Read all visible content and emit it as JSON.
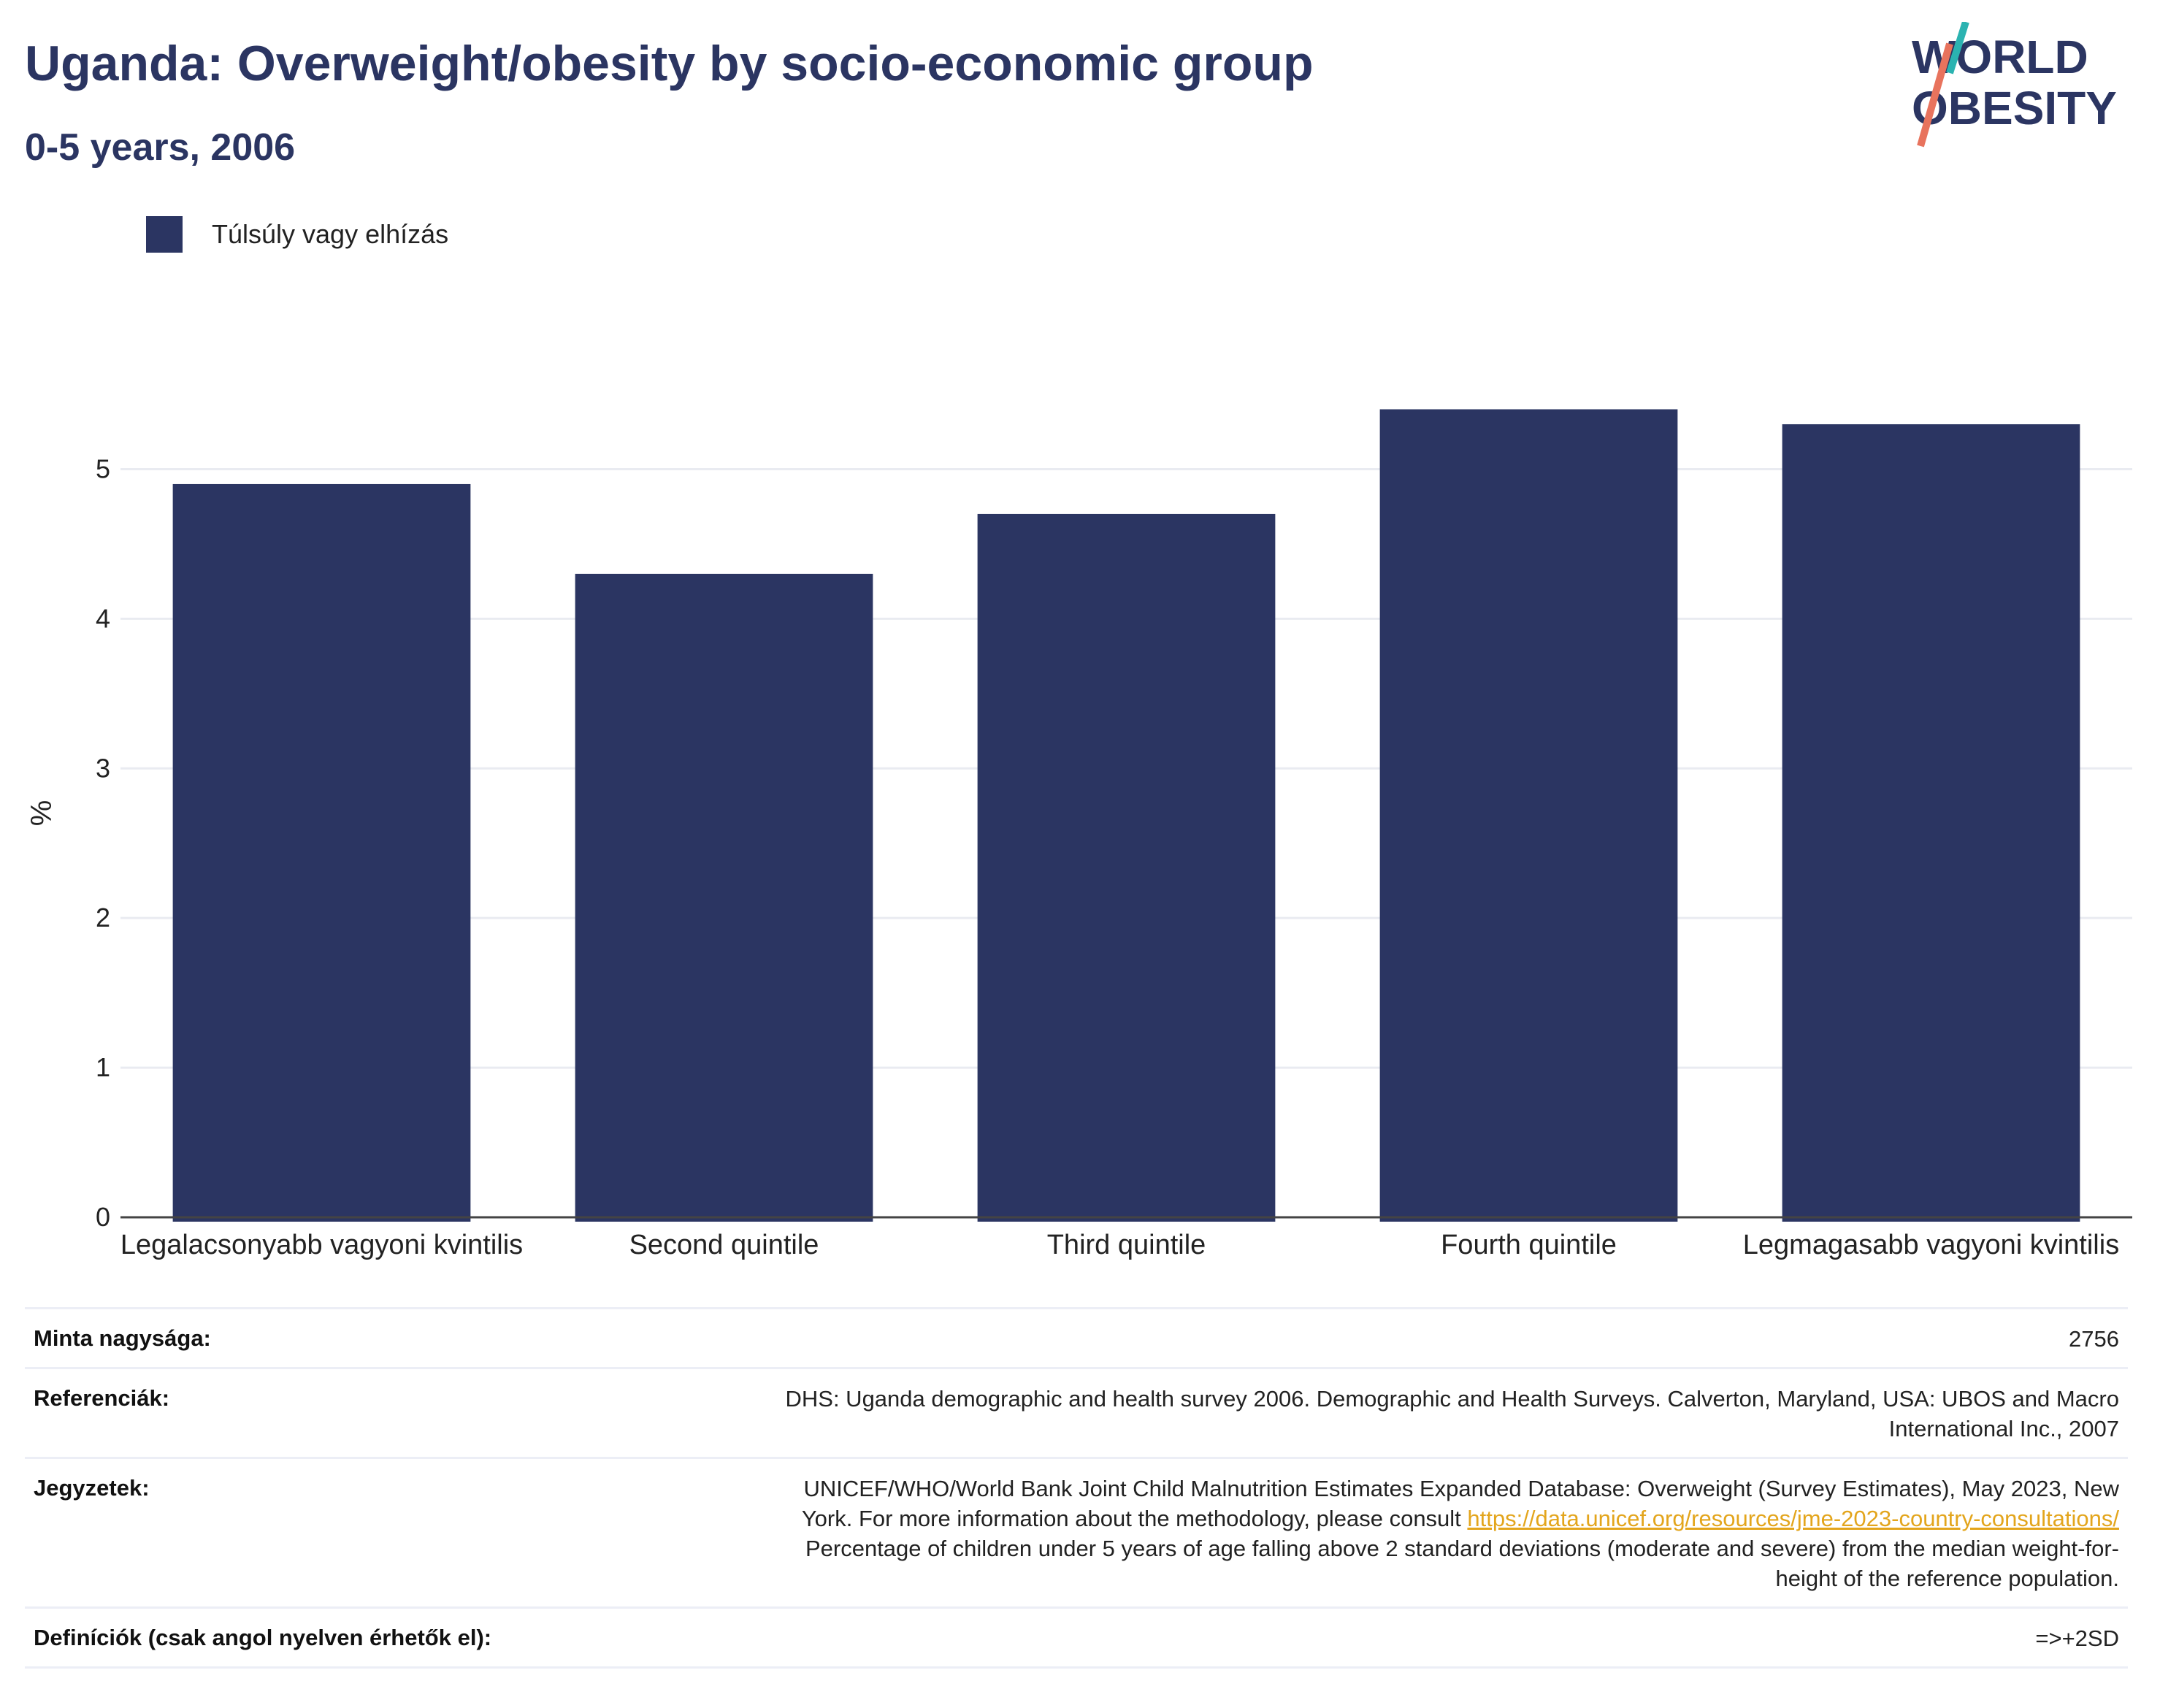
{
  "title": "Uganda: Overweight/obesity by socio-economic group",
  "subtitle": "0-5 years, 2006",
  "logo": {
    "line1": "WORLD",
    "line2": "OBESITY",
    "colors": {
      "text": "#2b3562",
      "slash_top": "#2bb3b1",
      "slash_bottom": "#e8735d"
    }
  },
  "legend": {
    "label": "Túlsúly vagy elhízás",
    "color": "#2b3562"
  },
  "chart_data": {
    "type": "bar",
    "categories": [
      "Legalacsonyabb vagyoni kvintilis",
      "Second quintile",
      "Third quintile",
      "Fourth quintile",
      "Legmagasabb vagyoni kvintilis"
    ],
    "series": [
      {
        "name": "Túlsúly vagy elhízás",
        "values": [
          4.9,
          4.3,
          4.7,
          5.4,
          5.3
        ],
        "color": "#2b3562"
      }
    ],
    "ylabel": "%",
    "ylim": [
      0,
      5.5
    ],
    "yticks": [
      0,
      1,
      2,
      3,
      4,
      5
    ],
    "grid": true,
    "legend_position": "top-left"
  },
  "meta": {
    "sample": {
      "label": "Minta nagysága:",
      "value": "2756"
    },
    "references": {
      "label": "Referenciák:",
      "line1": "DHS: Uganda demographic and health survey 2006. Demographic and Health Surveys. Calverton, Maryland, USA: UBOS and Macro",
      "line2": "International Inc., 2007"
    },
    "notes": {
      "label": "Jegyzetek:",
      "line1": "UNICEF/WHO/World Bank Joint Child Malnutrition Estimates Expanded Database: Overweight (Survey Estimates), May 2023, New",
      "line2_prefix": "York. For more information about the methodology, please consult ",
      "link": "https://data.unicef.org/resources/jme-2023-country-consultations/",
      "line3": "Percentage of children under 5 years of age falling above 2 standard deviations (moderate and severe) from the median weight-for-",
      "line4": "height of the reference population."
    },
    "definitions": {
      "label": "Definíciók (csak angol nyelven érhetők el):",
      "value": "=>+2SD"
    }
  }
}
